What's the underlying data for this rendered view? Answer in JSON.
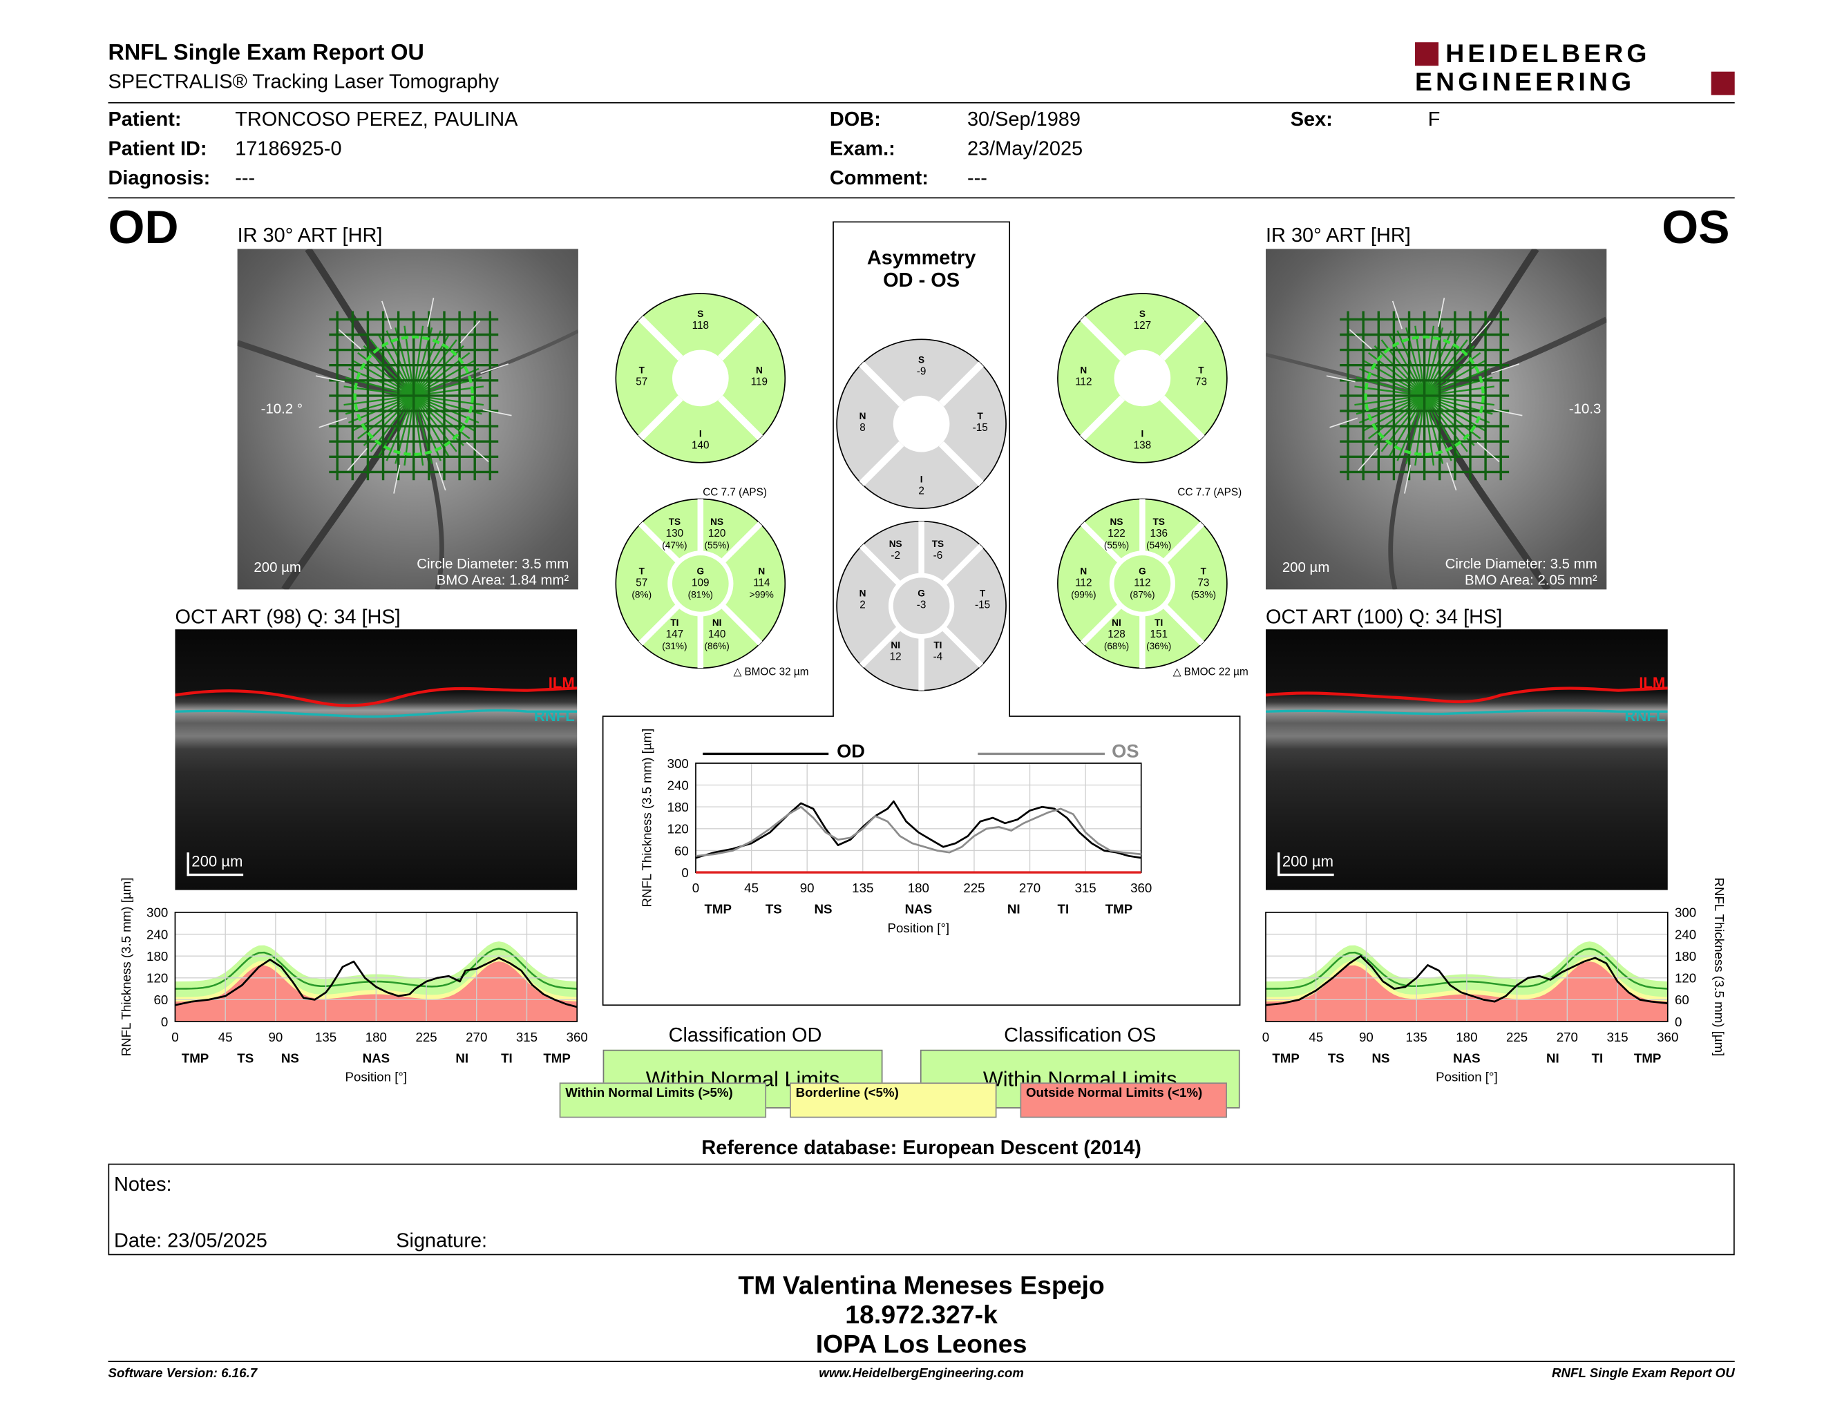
{
  "header": {
    "title": "RNFL Single Exam Report OU",
    "subtitle": "SPECTRALIS® Tracking Laser Tomography",
    "logo_line1": "HEIDELBERG",
    "logo_line2": "ENGINEERING"
  },
  "patient": {
    "patient_label": "Patient:",
    "patient_value": "TRONCOSO PEREZ, PAULINA",
    "id_label": "Patient ID:",
    "id_value": "17186925-0",
    "diag_label": "Diagnosis:",
    "diag_value": "---",
    "dob_label": "DOB:",
    "dob_value": "30/Sep/1989",
    "exam_label": "Exam.:",
    "exam_value": "23/May/2025",
    "comment_label": "Comment:",
    "comment_value": "---",
    "sex_label": "Sex:",
    "sex_value": "F"
  },
  "od": {
    "eye": "OD",
    "ir_title": "IR 30° ART [HR]",
    "angle": "-10.2 °",
    "scale": "200 µm",
    "circle": "Circle Diameter: 3.5 mm",
    "bmo": "BMO Area: 1.84 mm²",
    "oct_title": "OCT ART (98) Q: 34 [HS]",
    "oct_scale": "200 µm",
    "ilm": "ILM",
    "rnfl": "RNFL",
    "quad": {
      "S": {
        "label": "S",
        "value": "118"
      },
      "T": {
        "label": "T",
        "value": "57"
      },
      "N": {
        "label": "N",
        "value": "119"
      },
      "I": {
        "label": "I",
        "value": "140"
      }
    },
    "cc": "CC 7.7 (APS)",
    "bmoc": "BMOC 32 µm",
    "sect": {
      "TS": {
        "label": "TS",
        "value": "130",
        "pct": "(47%)"
      },
      "NS": {
        "label": "NS",
        "value": "120",
        "pct": "(55%)"
      },
      "T": {
        "label": "T",
        "value": "57",
        "pct": "(8%)"
      },
      "G": {
        "label": "G",
        "value": "109",
        "pct": "(81%)"
      },
      "N": {
        "label": "N",
        "value": "114",
        "pct": ">99%"
      },
      "TI": {
        "label": "TI",
        "value": "147",
        "pct": "(31%)"
      },
      "NI": {
        "label": "NI",
        "value": "140",
        "pct": "(86%)"
      }
    }
  },
  "os": {
    "eye": "OS",
    "ir_title": "IR 30° ART [HR]",
    "angle": "-10.3",
    "scale": "200 µm",
    "circle": "Circle Diameter: 3.5 mm",
    "bmo": "BMO Area: 2.05 mm²",
    "oct_title": "OCT ART (100) Q: 34 [HS]",
    "oct_scale": "200 µm",
    "ilm": "ILM",
    "rnfl": "RNFL",
    "quad": {
      "S": {
        "label": "S",
        "value": "127"
      },
      "N": {
        "label": "N",
        "value": "112"
      },
      "T": {
        "label": "T",
        "value": "73"
      },
      "I": {
        "label": "I",
        "value": "138"
      }
    },
    "cc": "CC 7.7 (APS)",
    "bmoc": "BMOC 22 µm",
    "sect": {
      "NS": {
        "label": "NS",
        "value": "122",
        "pct": "(55%)"
      },
      "TS": {
        "label": "TS",
        "value": "136",
        "pct": "(54%)"
      },
      "N": {
        "label": "N",
        "value": "112",
        "pct": "(99%)"
      },
      "G": {
        "label": "G",
        "value": "112",
        "pct": "(87%)"
      },
      "T": {
        "label": "T",
        "value": "73",
        "pct": "(53%)"
      },
      "NI": {
        "label": "NI",
        "value": "128",
        "pct": "(68%)"
      },
      "TI": {
        "label": "TI",
        "value": "151",
        "pct": "(36%)"
      }
    }
  },
  "asym": {
    "title1": "Asymmetry",
    "title2": "OD - OS",
    "quad": {
      "S": {
        "label": "S",
        "value": "-9"
      },
      "N": {
        "label": "N",
        "value": "8"
      },
      "T": {
        "label": "T",
        "value": "-15"
      },
      "I": {
        "label": "I",
        "value": "2"
      }
    },
    "sect": {
      "NS": {
        "label": "NS",
        "value": "-2"
      },
      "TS": {
        "label": "TS",
        "value": "-6"
      },
      "N": {
        "label": "N",
        "value": "2"
      },
      "G": {
        "label": "G",
        "value": "-3"
      },
      "T": {
        "label": "T",
        "value": "-15"
      },
      "NI": {
        "label": "NI",
        "value": "12"
      },
      "TI": {
        "label": "TI",
        "value": "-4"
      }
    }
  },
  "colors": {
    "within": "#c7fc9c",
    "borderline": "#fbfc9c",
    "outside": "#fb8c84",
    "asym": "#d7d7d7",
    "od_line": "#000000",
    "os_line": "#8c8c8c"
  },
  "chart_data": [
    {
      "id": "od",
      "type": "line",
      "xlabel": "Position [°]",
      "ylabel": "RNFL Thickness (3.5 mm) [µm]",
      "xlim": [
        0,
        360
      ],
      "ylim": [
        0,
        300
      ],
      "x_ticks": [
        "0",
        "45",
        "90",
        "135",
        "180",
        "225",
        "270",
        "315",
        "360"
      ],
      "y_ticks": [
        "0",
        "60",
        "120",
        "180",
        "240",
        "300"
      ],
      "region_labels": [
        {
          "x": 18,
          "label": "TMP"
        },
        {
          "x": 63,
          "label": "TS"
        },
        {
          "x": 103,
          "label": "NS"
        },
        {
          "x": 180,
          "label": "NAS"
        },
        {
          "x": 257,
          "label": "NI"
        },
        {
          "x": 297,
          "label": "TI"
        },
        {
          "x": 342,
          "label": "TMP"
        }
      ],
      "series": [
        {
          "x": [
            0,
            15,
            30,
            45,
            60,
            75,
            85,
            95,
            105,
            115,
            125,
            135,
            140,
            145,
            150,
            160,
            170,
            180,
            190,
            200,
            210,
            215,
            225,
            235,
            245,
            255,
            260,
            270,
            280,
            290,
            300,
            310,
            320,
            330,
            340,
            350,
            360
          ],
          "values": [
            45,
            55,
            60,
            70,
            100,
            150,
            170,
            150,
            110,
            65,
            60,
            80,
            100,
            125,
            150,
            165,
            120,
            95,
            80,
            70,
            75,
            90,
            110,
            120,
            125,
            110,
            140,
            145,
            160,
            175,
            160,
            140,
            100,
            75,
            60,
            48,
            40
          ]
        }
      ]
    },
    {
      "id": "os",
      "type": "line",
      "xlabel": "Position [°]",
      "ylabel": "RNFL Thickness (3.5 mm) [µm]",
      "xlim": [
        0,
        360
      ],
      "ylim": [
        0,
        300
      ],
      "x_ticks": [
        "0",
        "45",
        "90",
        "135",
        "180",
        "225",
        "270",
        "315",
        "360"
      ],
      "y_ticks": [
        "0",
        "60",
        "120",
        "180",
        "240",
        "300"
      ],
      "region_labels": [
        {
          "x": 18,
          "label": "TMP"
        },
        {
          "x": 63,
          "label": "TS"
        },
        {
          "x": 103,
          "label": "NS"
        },
        {
          "x": 180,
          "label": "NAS"
        },
        {
          "x": 257,
          "label": "NI"
        },
        {
          "x": 297,
          "label": "TI"
        },
        {
          "x": 342,
          "label": "TMP"
        }
      ],
      "series": [
        {
          "x": [
            0,
            15,
            30,
            45,
            60,
            75,
            85,
            95,
            105,
            115,
            125,
            135,
            145,
            155,
            165,
            175,
            185,
            195,
            205,
            215,
            225,
            235,
            245,
            255,
            265,
            275,
            285,
            295,
            305,
            315,
            325,
            335,
            345,
            360
          ],
          "values": [
            45,
            50,
            60,
            85,
            120,
            160,
            180,
            150,
            110,
            90,
            95,
            120,
            155,
            140,
            100,
            80,
            70,
            60,
            55,
            70,
            100,
            120,
            125,
            115,
            135,
            150,
            165,
            175,
            160,
            110,
            80,
            60,
            55,
            50
          ]
        }
      ]
    },
    {
      "id": "asym",
      "type": "line",
      "xlabel": "Position [°]",
      "ylabel": "RNFL Thickness (3.5 mm) [µm]",
      "xlim": [
        0,
        360
      ],
      "ylim": [
        0,
        300
      ],
      "x_ticks": [
        "0",
        "45",
        "90",
        "135",
        "180",
        "225",
        "270",
        "315",
        "360"
      ],
      "y_ticks": [
        "0",
        "60",
        "120",
        "180",
        "240",
        "300"
      ],
      "region_labels": [
        {
          "x": 18,
          "label": "TMP"
        },
        {
          "x": 63,
          "label": "TS"
        },
        {
          "x": 103,
          "label": "NS"
        },
        {
          "x": 180,
          "label": "NAS"
        },
        {
          "x": 257,
          "label": "NI"
        },
        {
          "x": 297,
          "label": "TI"
        },
        {
          "x": 342,
          "label": "TMP"
        }
      ],
      "series": [
        {
          "name": "OD",
          "x": [
            0,
            15,
            30,
            45,
            60,
            75,
            85,
            95,
            105,
            115,
            125,
            135,
            145,
            155,
            160,
            170,
            180,
            190,
            200,
            210,
            220,
            230,
            240,
            250,
            260,
            270,
            280,
            290,
            300,
            310,
            320,
            330,
            340,
            350,
            360
          ],
          "values": [
            40,
            55,
            65,
            80,
            110,
            160,
            190,
            175,
            120,
            75,
            90,
            125,
            155,
            175,
            195,
            140,
            110,
            90,
            70,
            80,
            100,
            140,
            150,
            135,
            145,
            170,
            180,
            175,
            150,
            110,
            80,
            60,
            55,
            45,
            40
          ]
        },
        {
          "name": "OS",
          "x": [
            0,
            15,
            30,
            45,
            60,
            75,
            85,
            95,
            105,
            115,
            125,
            135,
            145,
            155,
            165,
            175,
            185,
            195,
            205,
            215,
            225,
            235,
            245,
            255,
            265,
            275,
            285,
            295,
            305,
            315,
            325,
            335,
            345,
            360
          ],
          "values": [
            45,
            50,
            60,
            85,
            120,
            160,
            180,
            150,
            110,
            90,
            95,
            120,
            155,
            140,
            100,
            80,
            70,
            60,
            55,
            70,
            100,
            120,
            125,
            115,
            135,
            150,
            165,
            175,
            160,
            110,
            80,
            60,
            55,
            50
          ]
        }
      ]
    }
  ],
  "classification": {
    "od_title": "Classification OD",
    "os_title": "Classification OS",
    "od_value": "Within Normal Limits",
    "os_value": "Within Normal Limits"
  },
  "legend": {
    "within": "Within Normal Limits (>5%)",
    "borderline": "Borderline (<5%)",
    "outside": "Outside Normal Limits (<1%)"
  },
  "reference": "Reference database: European Descent (2014)",
  "notes": {
    "label": "Notes:",
    "date": "Date: 23/05/2025",
    "signature": "Signature:"
  },
  "signer": {
    "name": "TM Valentina Meneses Espejo",
    "id": "18.972.327-k",
    "org": "IOPA Los Leones"
  },
  "footer": {
    "version": "Software Version: 6.16.7",
    "url": "www.HeidelbergEngineering.com",
    "report": "RNFL Single Exam Report OU"
  }
}
